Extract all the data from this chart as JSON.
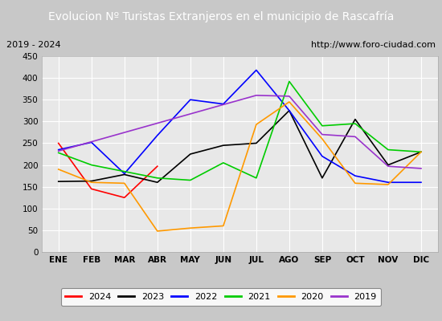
{
  "title": "Evolucion Nº Turistas Extranjeros en el municipio de Rascafría",
  "subtitle_left": "2019 - 2024",
  "subtitle_right": "http://www.foro-ciudad.com",
  "months": [
    "ENE",
    "FEB",
    "MAR",
    "ABR",
    "MAY",
    "JUN",
    "JUL",
    "AGO",
    "SEP",
    "OCT",
    "NOV",
    "DIC"
  ],
  "ylim": [
    0,
    450
  ],
  "yticks": [
    0,
    50,
    100,
    150,
    200,
    250,
    300,
    350,
    400,
    450
  ],
  "series": {
    "2024": {
      "color": "#ff0000",
      "values": [
        250,
        145,
        125,
        197,
        null,
        null,
        null,
        null,
        null,
        null,
        null,
        null
      ]
    },
    "2023": {
      "color": "#000000",
      "values": [
        162,
        163,
        178,
        160,
        225,
        245,
        250,
        325,
        170,
        305,
        200,
        230
      ]
    },
    "2022": {
      "color": "#0000ff",
      "values": [
        235,
        252,
        180,
        268,
        350,
        340,
        418,
        325,
        220,
        175,
        160,
        160
      ]
    },
    "2021": {
      "color": "#00cc00",
      "values": [
        228,
        200,
        185,
        170,
        165,
        205,
        170,
        392,
        290,
        295,
        235,
        230
      ]
    },
    "2020": {
      "color": "#ff9900",
      "values": [
        190,
        160,
        158,
        48,
        55,
        60,
        293,
        345,
        260,
        158,
        155,
        230
      ]
    },
    "2019": {
      "color": "#9933cc",
      "values": [
        232,
        null,
        null,
        null,
        null,
        null,
        360,
        358,
        270,
        265,
        197,
        192
      ]
    }
  },
  "title_bg_color": "#4f81bd",
  "title_text_color": "#ffffff",
  "plot_bg_color": "#e8e8e8",
  "figure_bg_color": "#c8c8c8",
  "grid_color": "#ffffff",
  "subtitle_bg_color": "#f2f2f2",
  "border_color": "#aaaaaa",
  "title_fontsize": 10,
  "subtitle_fontsize": 8,
  "tick_fontsize": 7.5,
  "legend_fontsize": 8
}
